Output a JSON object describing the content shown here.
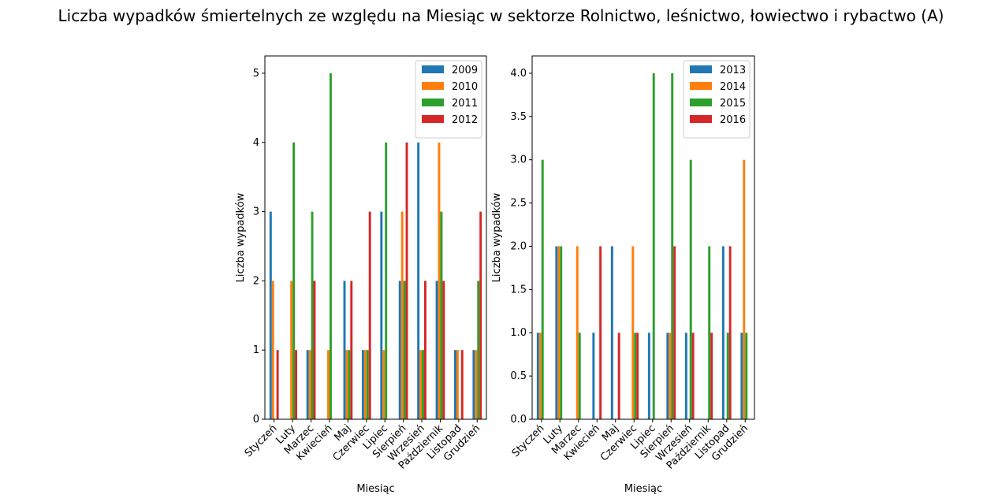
{
  "figure_title": "Liczba wypadków śmiertelnych ze względu na Miesiąc w sektorze Rolnictwo, leśnictwo, łowiectwo i rybactwo (A)",
  "colors": [
    "#1f77b4",
    "#ff7f0e",
    "#2ca02c",
    "#d62728"
  ],
  "chart_data": [
    {
      "type": "bar",
      "xlabel": "Miesiąc",
      "ylabel": "Liczba wypadków",
      "legend_position": "top-right",
      "ylim": [
        0,
        5.25
      ],
      "yticks": [
        0,
        1,
        2,
        3,
        4,
        5
      ],
      "ytick_labels": [
        "0",
        "1",
        "2",
        "3",
        "4",
        "5"
      ],
      "categories": [
        "Styczeń",
        "Luty",
        "Marzec",
        "Kwiecień",
        "Maj",
        "Czerwiec",
        "Lipiec",
        "Sierpień",
        "Wrzesień",
        "Październik",
        "Listopad",
        "Grudzień"
      ],
      "series": [
        {
          "name": "2009",
          "values": [
            3,
            0,
            1,
            0,
            2,
            1,
            3,
            2,
            4,
            2,
            1,
            1
          ]
        },
        {
          "name": "2010",
          "values": [
            2,
            2,
            1,
            1,
            1,
            1,
            1,
            3,
            1,
            4,
            1,
            1
          ]
        },
        {
          "name": "2011",
          "values": [
            0,
            4,
            3,
            5,
            1,
            1,
            4,
            2,
            1,
            3,
            0,
            2
          ]
        },
        {
          "name": "2012",
          "values": [
            1,
            1,
            2,
            0,
            2,
            3,
            0,
            4,
            2,
            2,
            1,
            3
          ]
        }
      ]
    },
    {
      "type": "bar",
      "xlabel": "Miesiąc",
      "ylabel": "Liczba wypadków",
      "legend_position": "top-right",
      "ylim": [
        0,
        4.2
      ],
      "yticks": [
        0,
        0.5,
        1,
        1.5,
        2,
        2.5,
        3,
        3.5,
        4
      ],
      "ytick_labels": [
        "0.0",
        "0.5",
        "1.0",
        "1.5",
        "2.0",
        "2.5",
        "3.0",
        "3.5",
        "4.0"
      ],
      "categories": [
        "Styczeń",
        "Luty",
        "Marzec",
        "Kwiecień",
        "Maj",
        "Czerwiec",
        "Lipiec",
        "Sierpień",
        "Wrzesień",
        "Październik",
        "Listopad",
        "Grudzień"
      ],
      "series": [
        {
          "name": "2013",
          "values": [
            1,
            2,
            0,
            1,
            2,
            0,
            1,
            1,
            1,
            0,
            2,
            1
          ]
        },
        {
          "name": "2014",
          "values": [
            1,
            2,
            2,
            0,
            0,
            2,
            0,
            1,
            0,
            0,
            0,
            3
          ]
        },
        {
          "name": "2015",
          "values": [
            3,
            2,
            1,
            0,
            0,
            1,
            4,
            4,
            3,
            2,
            1,
            1
          ]
        },
        {
          "name": "2016",
          "values": [
            0,
            0,
            0,
            2,
            1,
            1,
            0,
            2,
            1,
            1,
            2,
            0
          ]
        }
      ]
    }
  ]
}
